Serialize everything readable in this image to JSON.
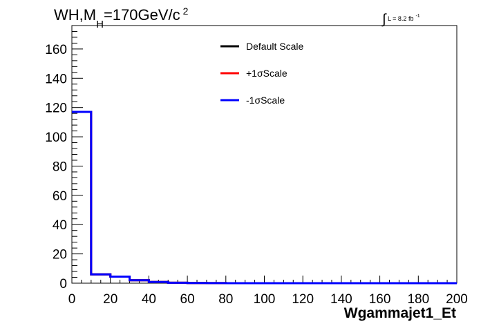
{
  "chart_data": {
    "type": "line",
    "title_parts": {
      "main": "WH,M",
      "sub": "H",
      "mid": "=170GeV/c",
      "sup": "2"
    },
    "lumi_label": {
      "integral": "∫",
      "text": "L = 8.2 fb",
      "sup": "-1"
    },
    "xlabel": "Wgammajet1_Et",
    "ylabel": "",
    "xlim": [
      0,
      200
    ],
    "ylim": [
      0,
      176
    ],
    "xticks": [
      0,
      20,
      40,
      60,
      80,
      100,
      120,
      140,
      160,
      180,
      200
    ],
    "yticks": [
      0,
      20,
      40,
      60,
      80,
      100,
      120,
      140,
      160
    ],
    "bin_edges": [
      0,
      10,
      20,
      30,
      40,
      50,
      60,
      70,
      80,
      90,
      100,
      110,
      120,
      130,
      140,
      150,
      160,
      170,
      180,
      190,
      200
    ],
    "series": [
      {
        "name": "Default Scale",
        "color": "#000000",
        "values": [
          117,
          6,
          4.5,
          2,
          0.8,
          0.3,
          0.1,
          0.05,
          0,
          0,
          0,
          0,
          0,
          0,
          0,
          0,
          0,
          0,
          0,
          0
        ]
      },
      {
        "name": "+1σScale",
        "color": "#ff0000",
        "values": [
          117,
          6,
          4.5,
          2,
          0.8,
          0.3,
          0.1,
          0.05,
          0,
          0,
          0,
          0,
          0,
          0,
          0,
          0,
          0,
          0,
          0,
          0
        ]
      },
      {
        "name": "-1σScale",
        "color": "#0000ff",
        "values": [
          117,
          6,
          4.5,
          2,
          0.8,
          0.3,
          0.1,
          0.05,
          0,
          0,
          0,
          0,
          0,
          0,
          0,
          0,
          0,
          0,
          0,
          0
        ]
      }
    ],
    "legend_position": "top-center",
    "grid": false
  }
}
